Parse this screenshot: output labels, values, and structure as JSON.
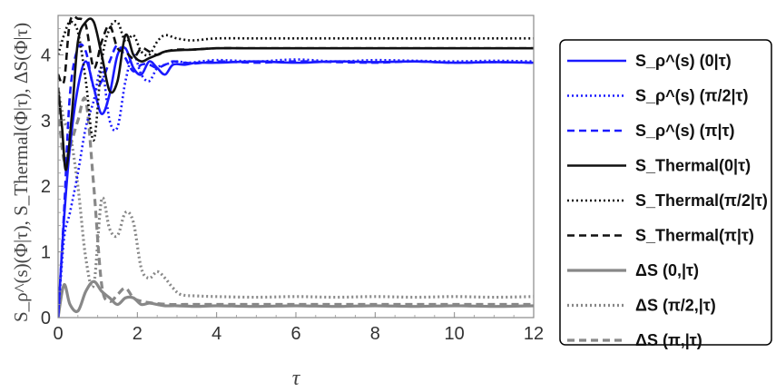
{
  "chart_data": {
    "type": "line",
    "xlabel": "τ",
    "ylabel": "S_ρ^(s)(Φ|τ), S_Thermal(Φ|τ), ΔS(Φ|τ)",
    "xlim": [
      0,
      12
    ],
    "ylim": [
      0,
      4.6
    ],
    "xticks": [
      "0",
      "2",
      "4",
      "6",
      "8",
      "10",
      "12"
    ],
    "yticks": [
      "0",
      "1",
      "2",
      "3",
      "4"
    ],
    "grid": false,
    "legend_position": "right, outside plot",
    "series": [
      {
        "name": "S_ρ^(s) (0|τ)",
        "color": "#1a1aff",
        "dash": "solid",
        "width": 2.6,
        "x": [
          0,
          0.15,
          0.3,
          0.5,
          0.7,
          0.9,
          1.1,
          1.3,
          1.5,
          1.7,
          1.9,
          2.1,
          2.3,
          2.5,
          2.7,
          2.9,
          3.2,
          3.5,
          4,
          5,
          6,
          7,
          8,
          9,
          10,
          11,
          12
        ],
        "y": [
          0,
          1.5,
          2.6,
          3.5,
          3.9,
          3.5,
          3.1,
          3.4,
          4.0,
          4.1,
          3.8,
          3.7,
          3.9,
          3.8,
          3.7,
          3.85,
          3.85,
          3.88,
          3.88,
          3.9,
          3.88,
          3.9,
          3.89,
          3.9,
          3.88,
          3.89,
          3.88
        ]
      },
      {
        "name": "S_ρ^(s) (π/2|τ)",
        "color": "#1a1aff",
        "dash": "2,3",
        "width": 2.6,
        "x": [
          0,
          0.15,
          0.3,
          0.5,
          0.7,
          0.9,
          1.1,
          1.3,
          1.5,
          1.7,
          1.9,
          2.1,
          2.3,
          2.5,
          2.7,
          3.0,
          3.3,
          4,
          5,
          6,
          7,
          8,
          9,
          10,
          11,
          12
        ],
        "y": [
          0,
          1.2,
          1.6,
          2.2,
          2.9,
          3.3,
          3.8,
          3.0,
          2.9,
          3.6,
          4.0,
          3.7,
          3.6,
          3.8,
          3.85,
          3.9,
          3.88,
          3.92,
          3.9,
          3.93,
          3.9,
          3.92,
          3.91,
          3.9,
          3.91,
          3.9
        ]
      },
      {
        "name": "S_ρ^(s) (π|τ)",
        "color": "#1a1aff",
        "dash": "8,5",
        "width": 2.6,
        "x": [
          0,
          0.15,
          0.3,
          0.5,
          0.7,
          0.9,
          1.1,
          1.3,
          1.5,
          1.7,
          1.9,
          2.1,
          2.3,
          2.5,
          2.7,
          2.9,
          3.2,
          3.5,
          4,
          5,
          6,
          7,
          8,
          9,
          10,
          11,
          12
        ],
        "y": [
          0,
          1.6,
          3.4,
          4.1,
          4.05,
          3.5,
          3.6,
          3.9,
          4.15,
          3.95,
          3.75,
          3.85,
          3.85,
          3.8,
          3.85,
          3.9,
          3.88,
          3.87,
          3.9,
          3.88,
          3.9,
          3.89,
          3.88,
          3.9,
          3.88,
          3.89,
          3.88
        ]
      },
      {
        "name": "S_Thermal(0|τ)",
        "color": "#111111",
        "dash": "solid",
        "width": 2.6,
        "x": [
          0,
          0.1,
          0.2,
          0.35,
          0.5,
          0.7,
          0.9,
          1.1,
          1.3,
          1.5,
          1.7,
          1.9,
          2.1,
          2.3,
          2.5,
          2.7,
          3.0,
          3.4,
          4,
          5,
          6,
          7,
          8,
          9,
          10,
          11,
          12
        ],
        "y": [
          3.5,
          2.9,
          2.25,
          3.1,
          4.2,
          4.5,
          4.5,
          4.0,
          3.45,
          3.6,
          4.3,
          4.0,
          3.9,
          3.95,
          4.0,
          4.05,
          4.07,
          4.08,
          4.1,
          4.1,
          4.1,
          4.1,
          4.1,
          4.1,
          4.1,
          4.1,
          4.1
        ]
      },
      {
        "name": "S_Thermal(π/2|τ)",
        "color": "#111111",
        "dash": "2,3",
        "width": 2.6,
        "x": [
          0,
          0.15,
          0.3,
          0.5,
          0.7,
          0.9,
          1.1,
          1.3,
          1.5,
          1.7,
          1.9,
          2.1,
          2.3,
          2.5,
          2.7,
          3.0,
          3.4,
          4,
          5,
          6,
          7,
          8,
          9,
          10,
          11,
          12
        ],
        "y": [
          4.0,
          4.3,
          4.5,
          4.35,
          3.6,
          2.7,
          3.9,
          4.4,
          4.5,
          4.2,
          4.3,
          4.05,
          4.0,
          4.2,
          4.3,
          4.25,
          4.22,
          4.25,
          4.25,
          4.25,
          4.25,
          4.25,
          4.25,
          4.25,
          4.25,
          4.25
        ]
      },
      {
        "name": "S_Thermal(π|τ)",
        "color": "#111111",
        "dash": "8,5",
        "width": 2.6,
        "x": [
          0,
          0.15,
          0.3,
          0.5,
          0.7,
          0.9,
          1.1,
          1.3,
          1.5,
          1.7,
          1.9,
          2.1,
          2.3,
          2.5,
          2.7,
          3.0,
          3.4,
          4,
          5,
          6,
          7,
          8,
          9,
          10,
          11,
          12
        ],
        "y": [
          3.7,
          3.6,
          4.5,
          4.55,
          4.45,
          3.8,
          4.2,
          4.45,
          4.1,
          4.05,
          3.95,
          4.1,
          4.05,
          4.0,
          4.05,
          4.08,
          4.08,
          4.1,
          4.1,
          4.1,
          4.1,
          4.1,
          4.1,
          4.1,
          4.1,
          4.1
        ]
      },
      {
        "name": "ΔS (0,|τ)",
        "color": "#888888",
        "dash": "solid",
        "width": 3.2,
        "x": [
          0,
          0.15,
          0.3,
          0.5,
          0.7,
          0.9,
          1.1,
          1.3,
          1.5,
          1.7,
          1.9,
          2.1,
          2.3,
          2.5,
          2.7,
          3.0,
          3.5,
          4,
          5,
          6,
          7,
          8,
          9,
          10,
          11,
          12
        ],
        "y": [
          0,
          0.5,
          0.2,
          0.1,
          0.4,
          0.55,
          0.4,
          0.3,
          0.2,
          0.3,
          0.3,
          0.2,
          0.22,
          0.2,
          0.18,
          0.18,
          0.17,
          0.18,
          0.17,
          0.18,
          0.17,
          0.18,
          0.17,
          0.18,
          0.17,
          0.18
        ]
      },
      {
        "name": "ΔS (π/2,|τ)",
        "color": "#888888",
        "dash": "2,3",
        "width": 3.2,
        "x": [
          0,
          0.15,
          0.3,
          0.5,
          0.7,
          0.9,
          1.1,
          1.3,
          1.5,
          1.7,
          1.9,
          2.1,
          2.3,
          2.5,
          2.7,
          2.9,
          3.1,
          3.5,
          4,
          5,
          6,
          7,
          8,
          9,
          10,
          11,
          12
        ],
        "y": [
          3.5,
          3.0,
          2.8,
          2.0,
          0.9,
          0.5,
          1.8,
          1.35,
          1.25,
          1.6,
          1.45,
          0.75,
          0.6,
          0.7,
          0.6,
          0.45,
          0.35,
          0.33,
          0.32,
          0.31,
          0.32,
          0.31,
          0.32,
          0.31,
          0.32,
          0.31,
          0.32
        ]
      },
      {
        "name": "ΔS (π,|τ)",
        "color": "#888888",
        "dash": "8,5",
        "width": 3.2,
        "x": [
          0,
          0.15,
          0.3,
          0.5,
          0.7,
          0.9,
          1.1,
          1.3,
          1.5,
          1.7,
          1.9,
          2.1,
          2.4,
          2.8,
          3.2,
          4,
          5,
          6,
          7,
          8,
          9,
          10,
          11,
          12
        ],
        "y": [
          3.2,
          2.4,
          2.6,
          3.0,
          3.3,
          2.0,
          0.5,
          0.25,
          0.35,
          0.45,
          0.3,
          0.25,
          0.22,
          0.2,
          0.2,
          0.2,
          0.2,
          0.2,
          0.2,
          0.2,
          0.2,
          0.2,
          0.2,
          0.2
        ]
      }
    ]
  }
}
